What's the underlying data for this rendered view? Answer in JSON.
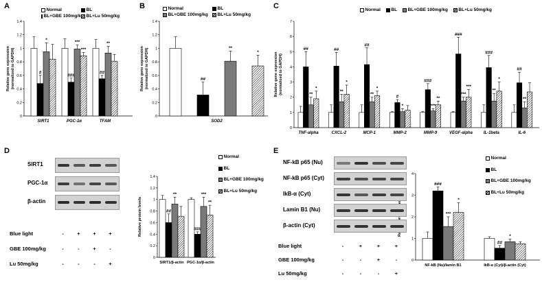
{
  "panels": {
    "A": {
      "letter": "A"
    },
    "B": {
      "letter": "B"
    },
    "C": {
      "letter": "C"
    },
    "D": {
      "letter": "D"
    },
    "E": {
      "letter": "E"
    }
  },
  "legends": {
    "normal": "Normal",
    "bl": "BL",
    "gbe": "BL+GBE 100mg/kg",
    "lu": "BL+Lu 50mg/kg"
  },
  "chart_data": [
    {
      "id": "A",
      "type": "bar",
      "ylabel": "Relative gene expression\n(normalized to GAPDH)",
      "ylim": [
        0,
        1.4
      ],
      "yticks": [
        "0",
        "0.2",
        "0.4",
        "0.6",
        "0.8",
        "1",
        "1.2",
        "1.4"
      ],
      "categories": [
        "SIRT1",
        "PGC-1α",
        "TFAM"
      ],
      "series": [
        {
          "name": "Normal",
          "values": [
            1.0,
            1.0,
            1.0
          ],
          "errors": [
            0.17,
            0.14,
            0.13
          ]
        },
        {
          "name": "BL",
          "values": [
            0.48,
            0.5,
            0.55
          ],
          "errors": [
            0.12,
            0.06,
            0.05
          ]
        },
        {
          "name": "BL+GBE 100mg/kg",
          "values": [
            0.95,
            0.99,
            0.93
          ],
          "errors": [
            0.13,
            0.06,
            0.1
          ]
        },
        {
          "name": "BL+Lu 50mg/kg",
          "values": [
            0.84,
            0.89,
            0.81
          ],
          "errors": [
            0.22,
            0.05,
            0.1
          ]
        }
      ],
      "annotations": [
        {
          "cat": 0,
          "series": 1,
          "text": "#"
        },
        {
          "cat": 0,
          "series": 2,
          "text": "*"
        },
        {
          "cat": 1,
          "series": 1,
          "text": "###"
        },
        {
          "cat": 1,
          "series": 2,
          "text": "***"
        },
        {
          "cat": 1,
          "series": 3,
          "text": "***"
        },
        {
          "cat": 2,
          "series": 1,
          "text": "##"
        },
        {
          "cat": 2,
          "series": 2,
          "text": "**"
        }
      ]
    },
    {
      "id": "B",
      "type": "bar",
      "ylabel": "Relative gene expression\n(normalized to GAPDH)",
      "ylim": [
        0,
        1.4
      ],
      "yticks": [
        "0",
        "0.2",
        "0.4",
        "0.6",
        "0.8",
        "1",
        "1.2",
        "1.4"
      ],
      "categories": [
        "SOD2"
      ],
      "series": [
        {
          "name": "Normal",
          "values": [
            1.0
          ],
          "errors": [
            0.17
          ]
        },
        {
          "name": "BL",
          "values": [
            0.31
          ],
          "errors": [
            0.19
          ]
        },
        {
          "name": "BL+GBE 100mg/kg",
          "values": [
            0.81
          ],
          "errors": [
            0.15
          ]
        },
        {
          "name": "BL+Lu 50mg/kg",
          "values": [
            0.74
          ],
          "errors": [
            0.16
          ]
        }
      ],
      "annotations": [
        {
          "cat": 0,
          "series": 1,
          "text": "##"
        },
        {
          "cat": 0,
          "series": 2,
          "text": "**"
        },
        {
          "cat": 0,
          "series": 3,
          "text": "*"
        }
      ]
    },
    {
      "id": "C",
      "type": "bar",
      "ylabel": "Relative gene expression\n(normalized to GAPDH)",
      "ylim": [
        0,
        7
      ],
      "yticks": [
        "0",
        "1",
        "2",
        "3",
        "4",
        "5",
        "6",
        "7"
      ],
      "categories": [
        "TNF-alpha",
        "CXCL-2",
        "MCP-1",
        "MMP-2",
        "MMP-9",
        "VEGF-alpha",
        "IL-1beta",
        "IL-6"
      ],
      "series": [
        {
          "name": "Normal",
          "values": [
            1.0,
            1.0,
            1.0,
            1.0,
            1.0,
            1.0,
            1.0,
            1.0
          ],
          "errors": [
            0.4,
            0.5,
            0.5,
            0.05,
            0.05,
            0.05,
            0.5,
            0.5
          ]
        },
        {
          "name": "BL",
          "values": [
            4.0,
            4.05,
            4.15,
            1.65,
            2.5,
            4.85,
            3.95,
            2.95
          ],
          "errors": [
            1.0,
            0.9,
            1.1,
            0.2,
            0.4,
            1.1,
            0.8,
            0.7
          ]
        },
        {
          "name": "BL+GBE 100mg/kg",
          "values": [
            1.5,
            1.7,
            1.7,
            1.05,
            1.1,
            1.75,
            1.75,
            1.3
          ],
          "errors": [
            0.5,
            0.5,
            0.3,
            0.2,
            0.15,
            0.25,
            0.5,
            0.4
          ]
        },
        {
          "name": "BL+Lu 50mg/kg",
          "values": [
            1.9,
            2.2,
            2.1,
            1.15,
            1.5,
            2.0,
            2.4,
            2.35
          ],
          "errors": [
            0.5,
            0.6,
            0.3,
            0.3,
            0.25,
            0.5,
            0.6,
            0.6
          ]
        }
      ],
      "annotations": [
        {
          "cat": 0,
          "series": 1,
          "text": "##"
        },
        {
          "cat": 0,
          "series": 2,
          "text": "**"
        },
        {
          "cat": 0,
          "series": 3,
          "text": "*"
        },
        {
          "cat": 1,
          "series": 1,
          "text": "##"
        },
        {
          "cat": 1,
          "series": 2,
          "text": "**"
        },
        {
          "cat": 1,
          "series": 3,
          "text": "*"
        },
        {
          "cat": 2,
          "series": 1,
          "text": "##"
        },
        {
          "cat": 2,
          "series": 2,
          "text": "**"
        },
        {
          "cat": 2,
          "series": 3,
          "text": "*"
        },
        {
          "cat": 3,
          "series": 1,
          "text": "#"
        },
        {
          "cat": 3,
          "series": 2,
          "text": "*"
        },
        {
          "cat": 4,
          "series": 1,
          "text": "###"
        },
        {
          "cat": 4,
          "series": 2,
          "text": "***"
        },
        {
          "cat": 4,
          "series": 3,
          "text": "**"
        },
        {
          "cat": 5,
          "series": 1,
          "text": "###"
        },
        {
          "cat": 5,
          "series": 2,
          "text": "***"
        },
        {
          "cat": 5,
          "series": 3,
          "text": "***"
        },
        {
          "cat": 6,
          "series": 1,
          "text": "###"
        },
        {
          "cat": 6,
          "series": 2,
          "text": "**"
        },
        {
          "cat": 6,
          "series": 3,
          "text": "*"
        },
        {
          "cat": 7,
          "series": 1,
          "text": "##"
        },
        {
          "cat": 7,
          "series": 2,
          "text": "**"
        }
      ]
    },
    {
      "id": "D",
      "type": "bar",
      "ylabel": "Relative protein levels",
      "ylim": [
        0,
        1.4
      ],
      "yticks": [
        "0",
        "0.2",
        "0.4",
        "0.6",
        "0.8",
        "1",
        "1.2",
        "1.4"
      ],
      "categories": [
        "SIRT1/β-actin",
        "PGC-1α/β-actin"
      ],
      "series": [
        {
          "name": "Normal",
          "values": [
            1.0,
            1.0
          ],
          "errors": [
            0.07,
            0.03
          ]
        },
        {
          "name": "BL",
          "values": [
            0.6,
            0.4
          ],
          "errors": [
            0.15,
            0.04
          ]
        },
        {
          "name": "BL+GBE 100mg/kg",
          "values": [
            0.92,
            0.88
          ],
          "errors": [
            0.12,
            0.16
          ]
        },
        {
          "name": "BL+Lu 50mg/kg",
          "values": [
            0.71,
            0.73
          ],
          "errors": [
            0.17,
            0.17
          ]
        }
      ],
      "annotations": [
        {
          "cat": 0,
          "series": 1,
          "text": "##"
        },
        {
          "cat": 0,
          "series": 2,
          "text": "**"
        },
        {
          "cat": 1,
          "series": 1,
          "text": "###"
        },
        {
          "cat": 1,
          "series": 2,
          "text": "***"
        },
        {
          "cat": 1,
          "series": 3,
          "text": "**"
        }
      ]
    },
    {
      "id": "E",
      "type": "bar",
      "ylabel": "Relative protein levels",
      "ylim": [
        0,
        4
      ],
      "yticks": [
        "0",
        "1",
        "2",
        "3",
        "4"
      ],
      "categories": [
        "NF-kB (Nu)/lamin B1",
        "IkB-α (Cyt)/β-actin (Cyt)"
      ],
      "series": [
        {
          "name": "Normal",
          "values": [
            1.0,
            1.0
          ],
          "errors": [
            0.3,
            0.08
          ]
        },
        {
          "name": "BL",
          "values": [
            3.2,
            0.55
          ],
          "errors": [
            0.18,
            0.12
          ]
        },
        {
          "name": "BL+GBE 100mg/kg",
          "values": [
            1.55,
            0.85
          ],
          "errors": [
            0.45,
            0.12
          ]
        },
        {
          "name": "BL+Lu 50mg/kg",
          "values": [
            2.2,
            0.75
          ],
          "errors": [
            0.45,
            0.1
          ]
        }
      ],
      "annotations": [
        {
          "cat": 0,
          "series": 1,
          "text": "###"
        },
        {
          "cat": 0,
          "series": 2,
          "text": "***"
        },
        {
          "cat": 0,
          "series": 3,
          "text": "*"
        },
        {
          "cat": 1,
          "series": 1,
          "text": "##"
        },
        {
          "cat": 1,
          "series": 2,
          "text": "*"
        }
      ]
    }
  ],
  "blots": {
    "D": {
      "labels": [
        "SIRT1",
        "PGC-1α",
        "β-actin"
      ],
      "treatments": [
        {
          "label": "Blue light",
          "marks": [
            "-",
            "+",
            "+",
            "+"
          ]
        },
        {
          "label": "GBE 100mg/kg",
          "marks": [
            "-",
            "-",
            "+",
            "-"
          ]
        },
        {
          "label": "Lu 50mg/kg",
          "marks": [
            "-",
            "-",
            "-",
            "+"
          ]
        }
      ]
    },
    "E": {
      "labels": [
        "NF-kB p65 (Nu)",
        "NF-kB p65 (Cyt)",
        "IkB-α (Cyt)",
        "Lamin B1 (Nu)",
        "β-actin (Cyt)"
      ],
      "treatments": [
        {
          "label": "Blue light",
          "marks": [
            "-",
            "+",
            "+",
            "+"
          ]
        },
        {
          "label": "GBE 100mg/kg",
          "marks": [
            "-",
            "-",
            "+",
            "-"
          ]
        },
        {
          "label": "Lu 50mg/kg",
          "marks": [
            "-",
            "-",
            "-",
            "+"
          ]
        }
      ]
    }
  }
}
